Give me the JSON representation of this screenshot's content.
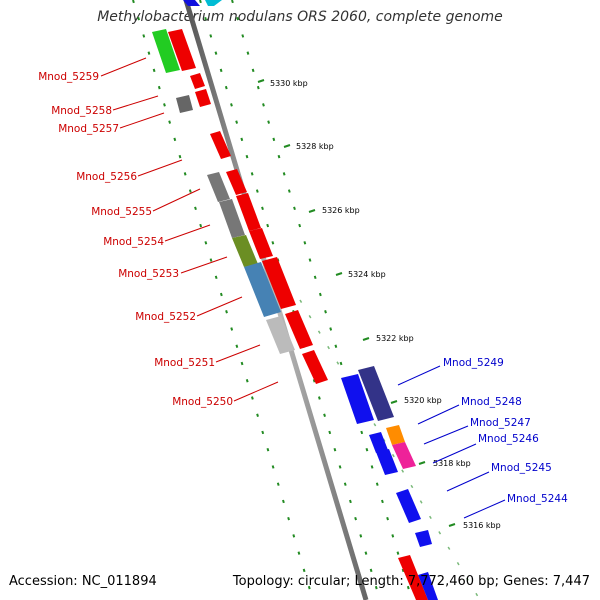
{
  "title": "Methylobacterium nodulans ORS 2060, complete genome",
  "footer": {
    "accession": "Accession: NC_011894",
    "summary": "Topology: circular; Length: 7,772,460 bp; Genes: 7,447"
  },
  "colors": {
    "forward_gene": "#ee0000",
    "reverse_gene": "#0000dd",
    "ruler": "#777777",
    "dotted_track": "#228b22",
    "label_red": "#cc0000",
    "label_blue": "#0000cc"
  },
  "kbp_ticks": [
    "5330 kbp",
    "5328 kbp",
    "5326 kbp",
    "5324 kbp",
    "5322 kbp",
    "5320 kbp",
    "5318 kbp",
    "5316 kbp"
  ],
  "left_labels": [
    "Mnod_5259",
    "Mnod_5258",
    "Mnod_5257",
    "Mnod_5256",
    "Mnod_5255",
    "Mnod_5254",
    "Mnod_5253",
    "Mnod_5252",
    "Mnod_5251",
    "Mnod_5250"
  ],
  "right_labels": [
    "Mnod_5249",
    "Mnod_5248",
    "Mnod_5247",
    "Mnod_5246",
    "Mnod_5245",
    "Mnod_5244"
  ]
}
